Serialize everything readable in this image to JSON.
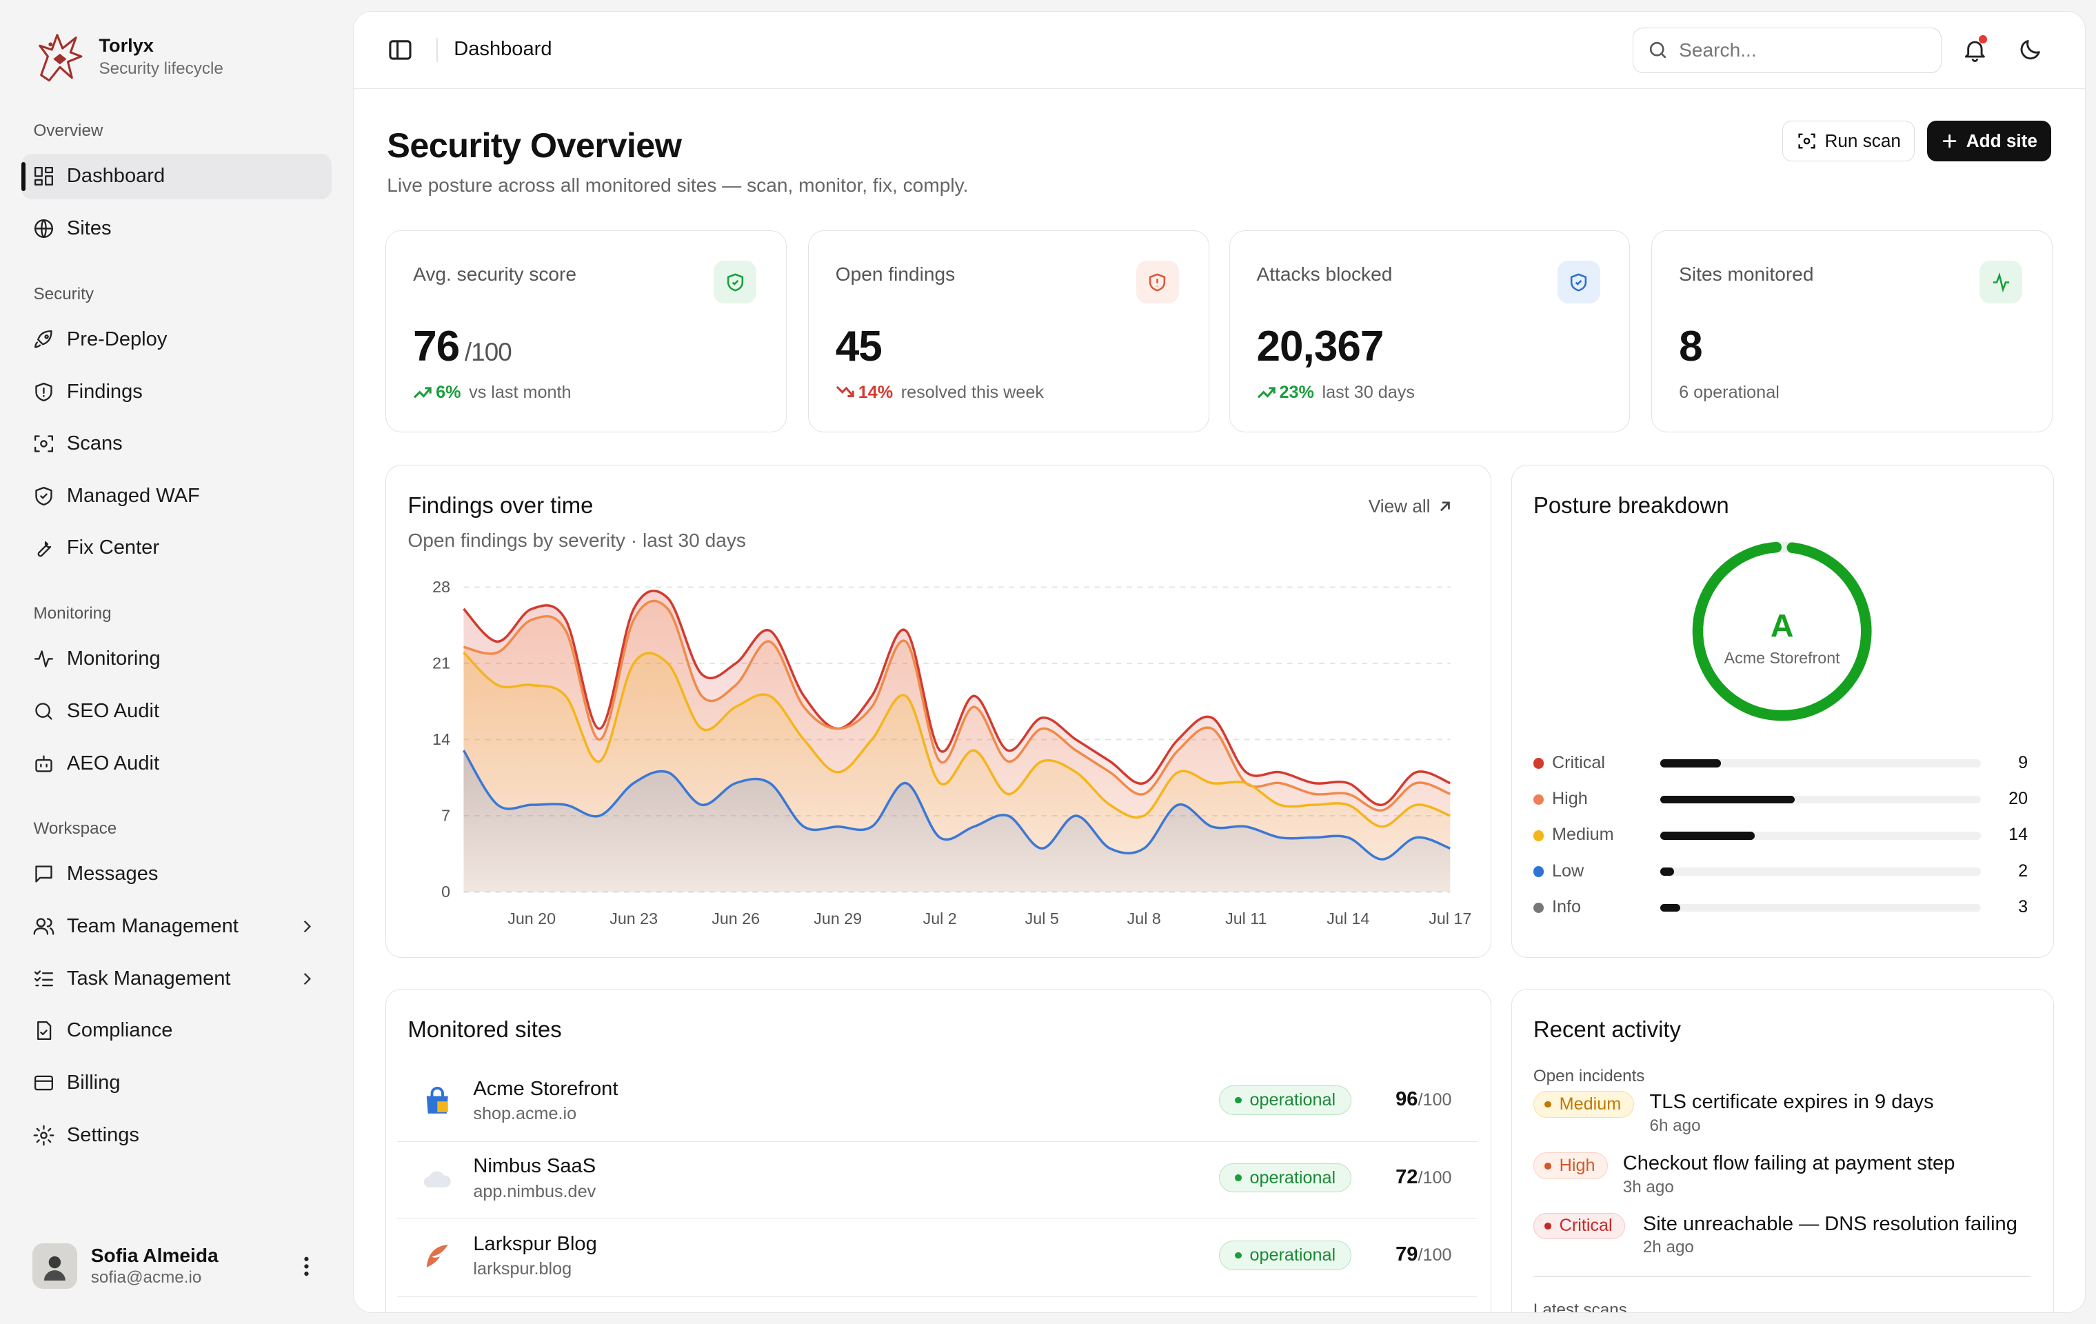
{
  "brand": {
    "name": "Torlyx",
    "tagline": "Security lifecycle"
  },
  "sidebar": {
    "sections": [
      {
        "label": "Overview"
      },
      {
        "label": "Security"
      },
      {
        "label": "Monitoring"
      },
      {
        "label": "Workspace"
      }
    ],
    "items": [
      {
        "label": "Dashboard",
        "icon": "dashboard-icon",
        "active": true
      },
      {
        "label": "Sites",
        "icon": "globe-icon"
      },
      {
        "label": "Pre-Deploy",
        "icon": "rocket-icon"
      },
      {
        "label": "Findings",
        "icon": "shield-alert-icon"
      },
      {
        "label": "Scans",
        "icon": "scan-icon"
      },
      {
        "label": "Managed WAF",
        "icon": "shield-check-icon"
      },
      {
        "label": "Fix Center",
        "icon": "wrench-icon"
      },
      {
        "label": "Monitoring",
        "icon": "activity-icon"
      },
      {
        "label": "SEO Audit",
        "icon": "search-icon"
      },
      {
        "label": "AEO Audit",
        "icon": "bot-icon"
      },
      {
        "label": "Messages",
        "icon": "message-icon"
      },
      {
        "label": "Team Management",
        "icon": "users-icon",
        "expandable": true
      },
      {
        "label": "Task Management",
        "icon": "tasks-icon",
        "expandable": true
      },
      {
        "label": "Compliance",
        "icon": "file-check-icon"
      },
      {
        "label": "Billing",
        "icon": "credit-card-icon"
      },
      {
        "label": "Settings",
        "icon": "gear-icon"
      }
    ],
    "user": {
      "name": "Sofia Almeida",
      "email": "sofia@acme.io"
    }
  },
  "topbar": {
    "title": "Dashboard",
    "search_placeholder": "Search..."
  },
  "header": {
    "title": "Security Overview",
    "subtitle": "Live posture across all monitored sites — scan, monitor, fix, comply.",
    "run_scan": "Run scan",
    "add_site": "Add site"
  },
  "stats": [
    {
      "label": "Avg. security score",
      "value": "76",
      "unit": "/100",
      "trend": "6%",
      "trend_dir": "up",
      "note": "vs last month",
      "badge_color": "#e6f6ea",
      "icon_color": "#1a9e3c"
    },
    {
      "label": "Open findings",
      "value": "45",
      "unit": "",
      "trend": "14%",
      "trend_dir": "down",
      "note": "resolved this week",
      "badge_color": "#fdeeea",
      "icon_color": "#d9583a"
    },
    {
      "label": "Attacks blocked",
      "value": "20,367",
      "unit": "",
      "trend": "23%",
      "trend_dir": "up",
      "note": "last 30 days",
      "badge_color": "#e6f0fc",
      "icon_color": "#2f6fd0"
    },
    {
      "label": "Sites monitored",
      "value": "8",
      "unit": "",
      "trend": "",
      "trend_dir": "",
      "note": "6 operational",
      "badge_color": "#e6f6ea",
      "icon_color": "#1a9e3c"
    }
  ],
  "findings_card": {
    "title": "Findings over time",
    "subtitle": "Open findings by severity · last 30 days",
    "view_all": "View all"
  },
  "chart_data": {
    "type": "area",
    "title": "Findings over time",
    "subtitle": "Open findings by severity · last 30 days",
    "ylim": [
      0,
      28
    ],
    "yticks": [
      0,
      7,
      14,
      21,
      28
    ],
    "xtick_labels": [
      "Jun 20",
      "Jun 23",
      "Jun 26",
      "Jun 29",
      "Jul 2",
      "Jul 5",
      "Jul 8",
      "Jul 11",
      "Jul 14",
      "Jul 17"
    ],
    "x": [
      "Jun 18",
      "Jun 19",
      "Jun 20",
      "Jun 21",
      "Jun 22",
      "Jun 23",
      "Jun 24",
      "Jun 25",
      "Jun 26",
      "Jun 27",
      "Jun 28",
      "Jun 29",
      "Jun 30",
      "Jul 1",
      "Jul 2",
      "Jul 3",
      "Jul 4",
      "Jul 5",
      "Jul 6",
      "Jul 7",
      "Jul 8",
      "Jul 9",
      "Jul 10",
      "Jul 11",
      "Jul 12",
      "Jul 13",
      "Jul 14",
      "Jul 15",
      "Jul 16",
      "Jul 17"
    ],
    "series": [
      {
        "color": "#d23b2e",
        "values": [
          26,
          23,
          26,
          25,
          15,
          26,
          27,
          20,
          21,
          24,
          18,
          15,
          18,
          24,
          13,
          18,
          13,
          16,
          14,
          12,
          10,
          14,
          16,
          11,
          11,
          10,
          10,
          8,
          11,
          10
        ]
      },
      {
        "color": "#f08a4b",
        "values": [
          22.5,
          22,
          25,
          24,
          14,
          25,
          26,
          18,
          19,
          23,
          17,
          15,
          17,
          23,
          12,
          17,
          12,
          15,
          13,
          11,
          9,
          13,
          15,
          10,
          10,
          9,
          9,
          7.5,
          10,
          9
        ]
      },
      {
        "color": "#f4b51c",
        "values": [
          22,
          19,
          19,
          18,
          12,
          21,
          21,
          15,
          17,
          18,
          14,
          11,
          14,
          18,
          10,
          13,
          9,
          12,
          11,
          8,
          7,
          11,
          10,
          10,
          8,
          8,
          8,
          6,
          8,
          7
        ]
      },
      {
        "color": "#3b78d4",
        "values": [
          13,
          8,
          8,
          8,
          7,
          10,
          11,
          8,
          10,
          10,
          6,
          6,
          6,
          10,
          5,
          6,
          7,
          4,
          7,
          4,
          4,
          8,
          6,
          6,
          5,
          5,
          5,
          3,
          5,
          4
        ]
      }
    ]
  },
  "posture": {
    "title": "Posture breakdown",
    "grade": "A",
    "site": "Acme Storefront",
    "ring_fraction": 0.97,
    "ring_color": "#15a11f",
    "rows": [
      {
        "name": "Critical",
        "count": "9",
        "value": 9,
        "color": "#d23b2e"
      },
      {
        "name": "High",
        "count": "20",
        "value": 20,
        "color": "#ee7e55"
      },
      {
        "name": "Medium",
        "count": "14",
        "value": 14,
        "color": "#f4b51c"
      },
      {
        "name": "Low",
        "count": "2",
        "value": 2,
        "color": "#2f73d6"
      },
      {
        "name": "Info",
        "count": "3",
        "value": 3,
        "color": "#777777"
      }
    ]
  },
  "sites_card": {
    "title": "Monitored sites",
    "rows": [
      {
        "name": "Acme Storefront",
        "host": "shop.acme.io",
        "status": "operational",
        "score": "96",
        "of": "/100",
        "icon": "shopping-bag-icon"
      },
      {
        "name": "Nimbus SaaS",
        "host": "app.nimbus.dev",
        "status": "operational",
        "score": "72",
        "of": "/100",
        "icon": "cloud-icon"
      },
      {
        "name": "Larkspur Blog",
        "host": "larkspur.blog",
        "status": "operational",
        "score": "79",
        "of": "/100",
        "icon": "feather-icon"
      }
    ]
  },
  "activity": {
    "title": "Recent activity",
    "open_incidents": "Open incidents",
    "items": [
      {
        "severity": "Medium",
        "text": "TLS certificate expires in 9 days",
        "time": "6h ago"
      },
      {
        "severity": "High",
        "text": "Checkout flow failing at payment step",
        "time": "3h ago"
      },
      {
        "severity": "Critical",
        "text": "Site unreachable — DNS resolution failing",
        "time": "2h ago"
      }
    ],
    "latest_scans": "Latest scans"
  }
}
